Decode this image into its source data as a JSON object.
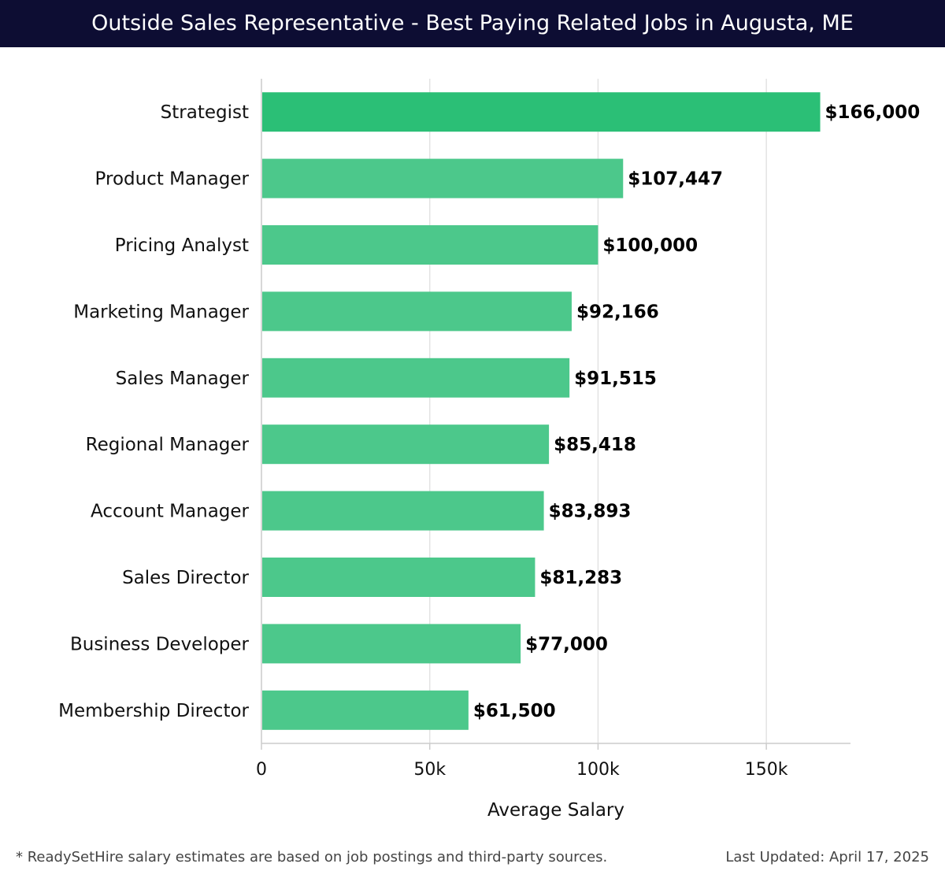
{
  "header": {
    "title": "Outside Sales Representative - Best Paying Related Jobs in Augusta, ME"
  },
  "chart_data": {
    "type": "bar",
    "orientation": "horizontal",
    "title": "Outside Sales Representative - Best Paying Related Jobs in Augusta, ME",
    "xlabel": "Average Salary",
    "ylabel": "",
    "xlim": [
      0,
      175000
    ],
    "grid": true,
    "categories": [
      "Strategist",
      "Product Manager",
      "Pricing Analyst",
      "Marketing Manager",
      "Sales Manager",
      "Regional Manager",
      "Account Manager",
      "Sales Director",
      "Business Developer",
      "Membership Director"
    ],
    "values": [
      166000,
      107447,
      100000,
      92166,
      91515,
      85418,
      83893,
      81283,
      77000,
      61500
    ],
    "value_labels": [
      "$166,000",
      "$107,447",
      "$100,000",
      "$92,166",
      "$91,515",
      "$85,418",
      "$83,893",
      "$81,283",
      "$77,000",
      "$61,500"
    ],
    "ticks": [
      {
        "value": 0,
        "label": "0"
      },
      {
        "value": 50000,
        "label": "50k"
      },
      {
        "value": 100000,
        "label": "100k"
      },
      {
        "value": 150000,
        "label": "150k"
      }
    ],
    "colors": {
      "top_bar": "#2bbf76",
      "bar": "#4cc88b",
      "grid": "#e3e3e3",
      "axis": "#cccccc"
    }
  },
  "footer": {
    "note": "* ReadySetHire salary estimates are based on job postings and third-party sources.",
    "updated": "Last Updated: April 17, 2025"
  }
}
